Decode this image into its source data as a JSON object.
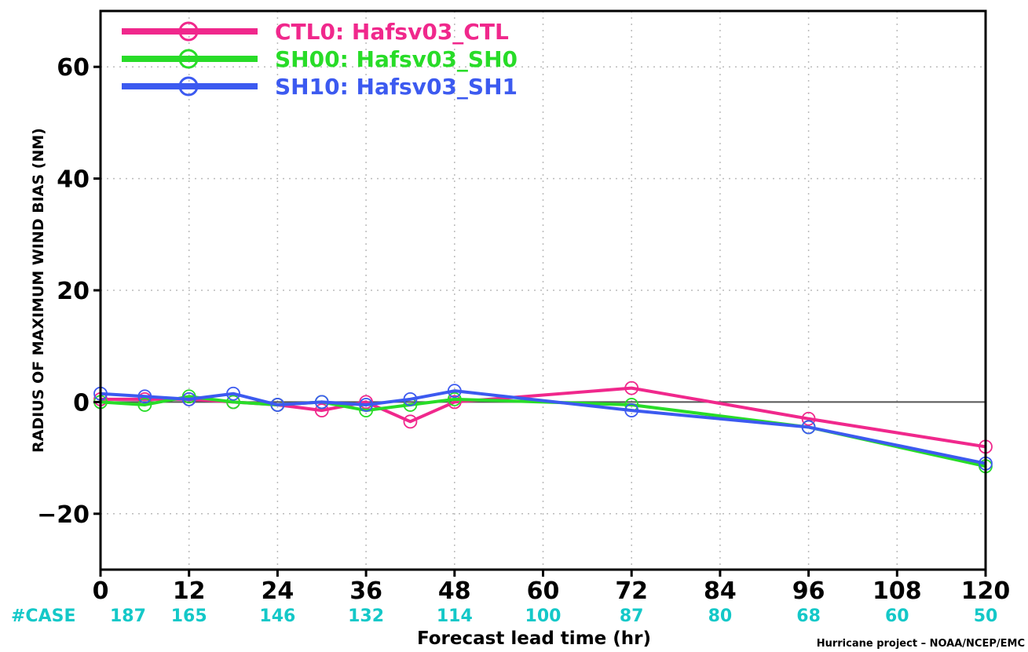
{
  "chart_data": {
    "type": "line",
    "ylabel": "RADIUS OF MAXIMUM WIND BIAS (NM)",
    "xlabel": "Forecast lead time (hr)",
    "credit": "Hurricane project – NOAA/NCEP/EMC",
    "xlim": [
      0,
      120
    ],
    "ylim": [
      -30,
      70
    ],
    "xticks": [
      0,
      12,
      24,
      36,
      48,
      60,
      72,
      84,
      96,
      108,
      120
    ],
    "yticks": [
      -20,
      0,
      20,
      40,
      60
    ],
    "ytick_labels": [
      "−20",
      "0",
      "20",
      "40",
      "60"
    ],
    "grid": true,
    "zero_line": true,
    "case_label": "#CASE",
    "case_color": "#14c8c8",
    "cases": [
      187,
      165,
      146,
      132,
      114,
      100,
      87,
      80,
      68,
      60,
      50
    ],
    "legend_position": "top-left",
    "x": [
      0,
      6,
      12,
      18,
      24,
      30,
      36,
      42,
      48,
      72,
      96,
      120
    ],
    "series": [
      {
        "name": "CTL0: Hafsv03_CTL",
        "color": "#f0288c",
        "values": [
          0.5,
          0.5,
          0.5,
          0,
          -0.5,
          -1.5,
          0,
          -3.5,
          0,
          2.5,
          -3,
          -8
        ]
      },
      {
        "name": "SH00: Hafsv03_SH0",
        "color": "#28dc28",
        "values": [
          0,
          -0.5,
          1,
          0,
          -0.5,
          0,
          -1.5,
          -0.5,
          0.5,
          -0.5,
          -4.5,
          -11.5
        ]
      },
      {
        "name": "SH10: Hafsv03_SH1",
        "color": "#3c5af0",
        "values": [
          1.5,
          1,
          0.5,
          1.5,
          -0.5,
          0,
          -0.5,
          0.5,
          2,
          -1.5,
          -4.5,
          -11
        ]
      }
    ]
  }
}
